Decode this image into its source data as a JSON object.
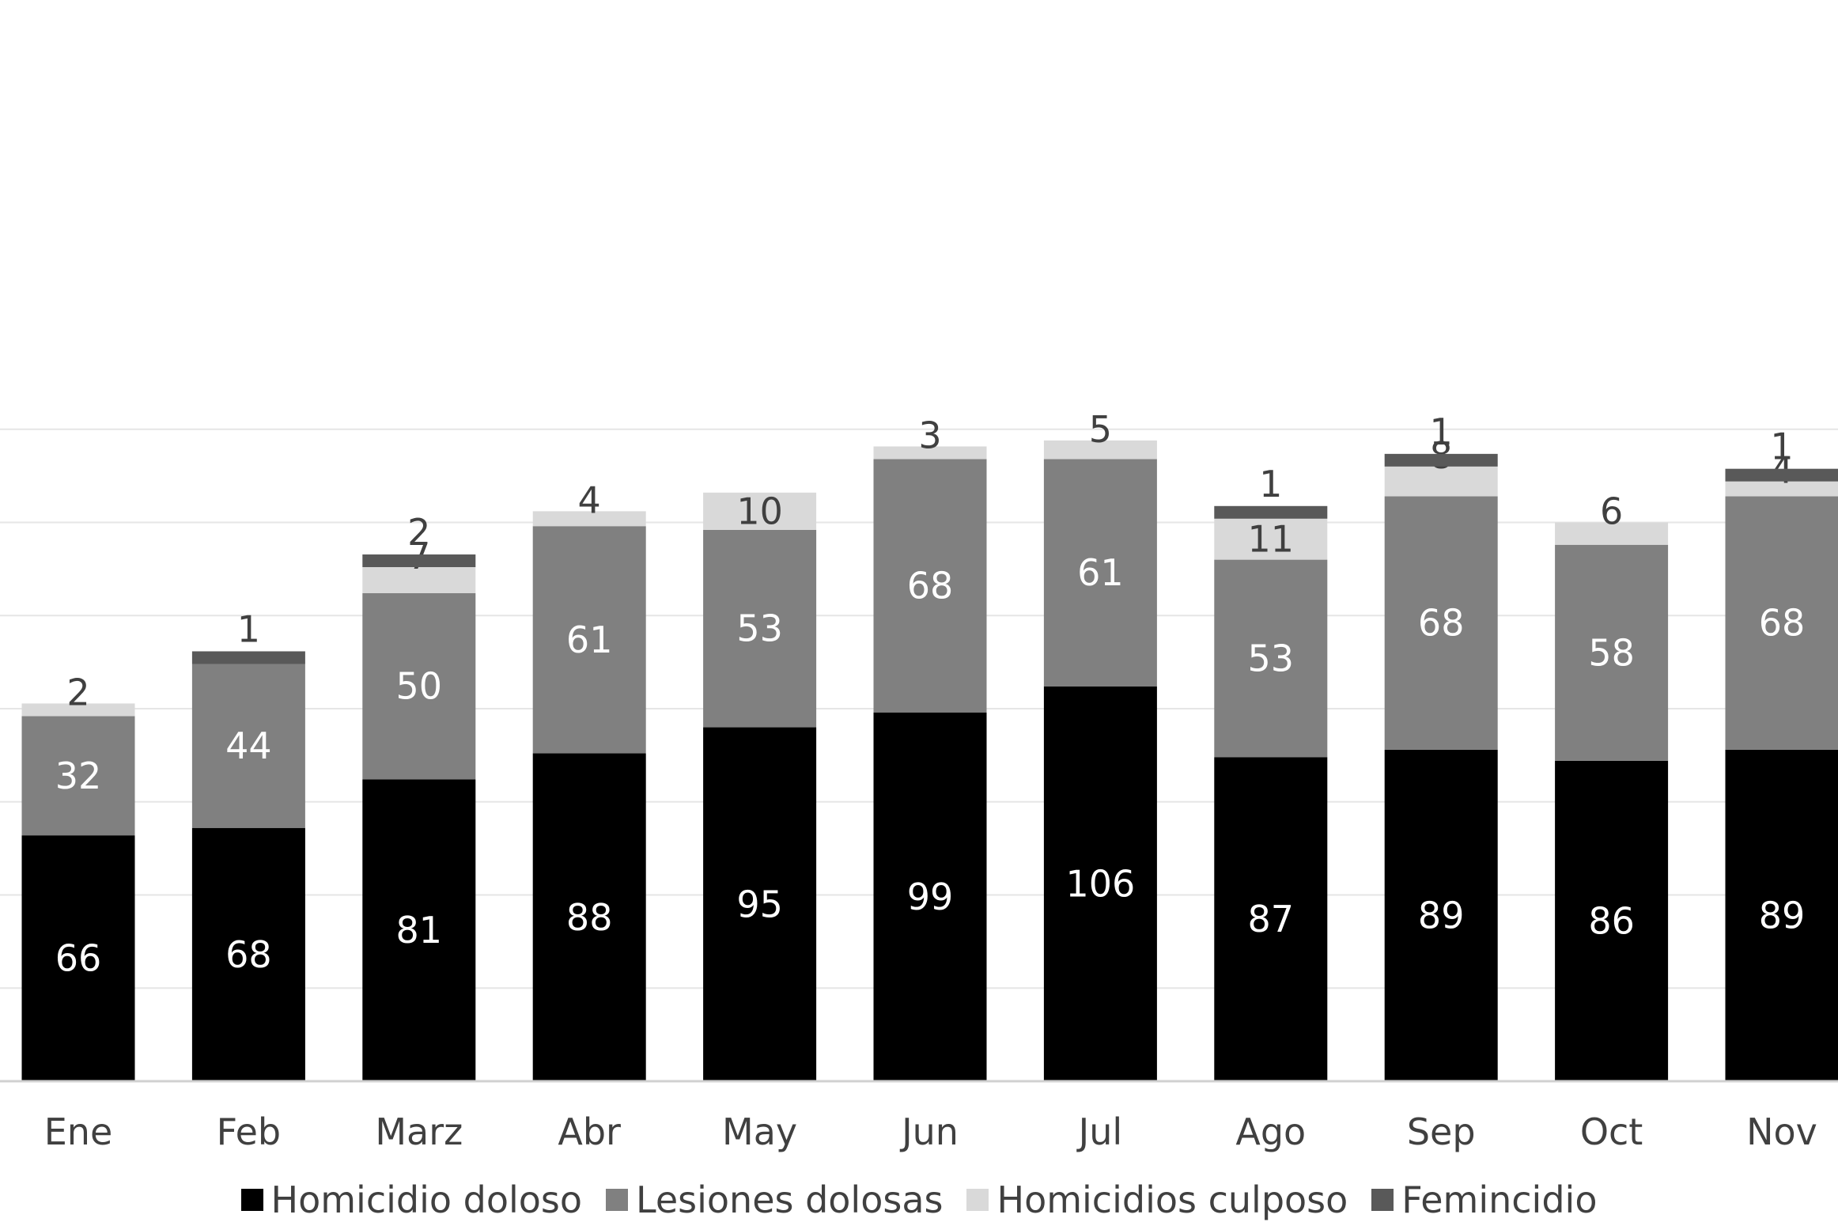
{
  "chart_data": {
    "type": "bar",
    "stacked": true,
    "categories": [
      "Ene",
      "Feb",
      "Marz",
      "Abr",
      "May",
      "Jun",
      "Jul",
      "Ago",
      "Sep",
      "Oct",
      "Nov"
    ],
    "series": [
      {
        "name": "Homicidio doloso",
        "color": "#000000",
        "label_color": "#ffffff",
        "values": [
          66,
          68,
          81,
          88,
          95,
          99,
          106,
          87,
          89,
          86,
          89
        ]
      },
      {
        "name": "Lesiones dolosas",
        "color": "#808080",
        "label_color": "#ffffff",
        "values": [
          32,
          44,
          50,
          61,
          53,
          68,
          61,
          53,
          68,
          58,
          68
        ]
      },
      {
        "name": "Homicidios culposo",
        "color": "#d9d9d9",
        "label_color": "#404040",
        "values": [
          2,
          0,
          7,
          4,
          10,
          3,
          5,
          11,
          8,
          6,
          4
        ]
      },
      {
        "name": "Femincidio",
        "color": "#595959",
        "label_color": "#404040",
        "values": [
          0,
          1,
          2,
          0,
          0,
          0,
          0,
          1,
          1,
          0,
          1
        ]
      }
    ],
    "ylim": [
      0,
      175
    ],
    "grid": true,
    "legend": "bottom"
  }
}
